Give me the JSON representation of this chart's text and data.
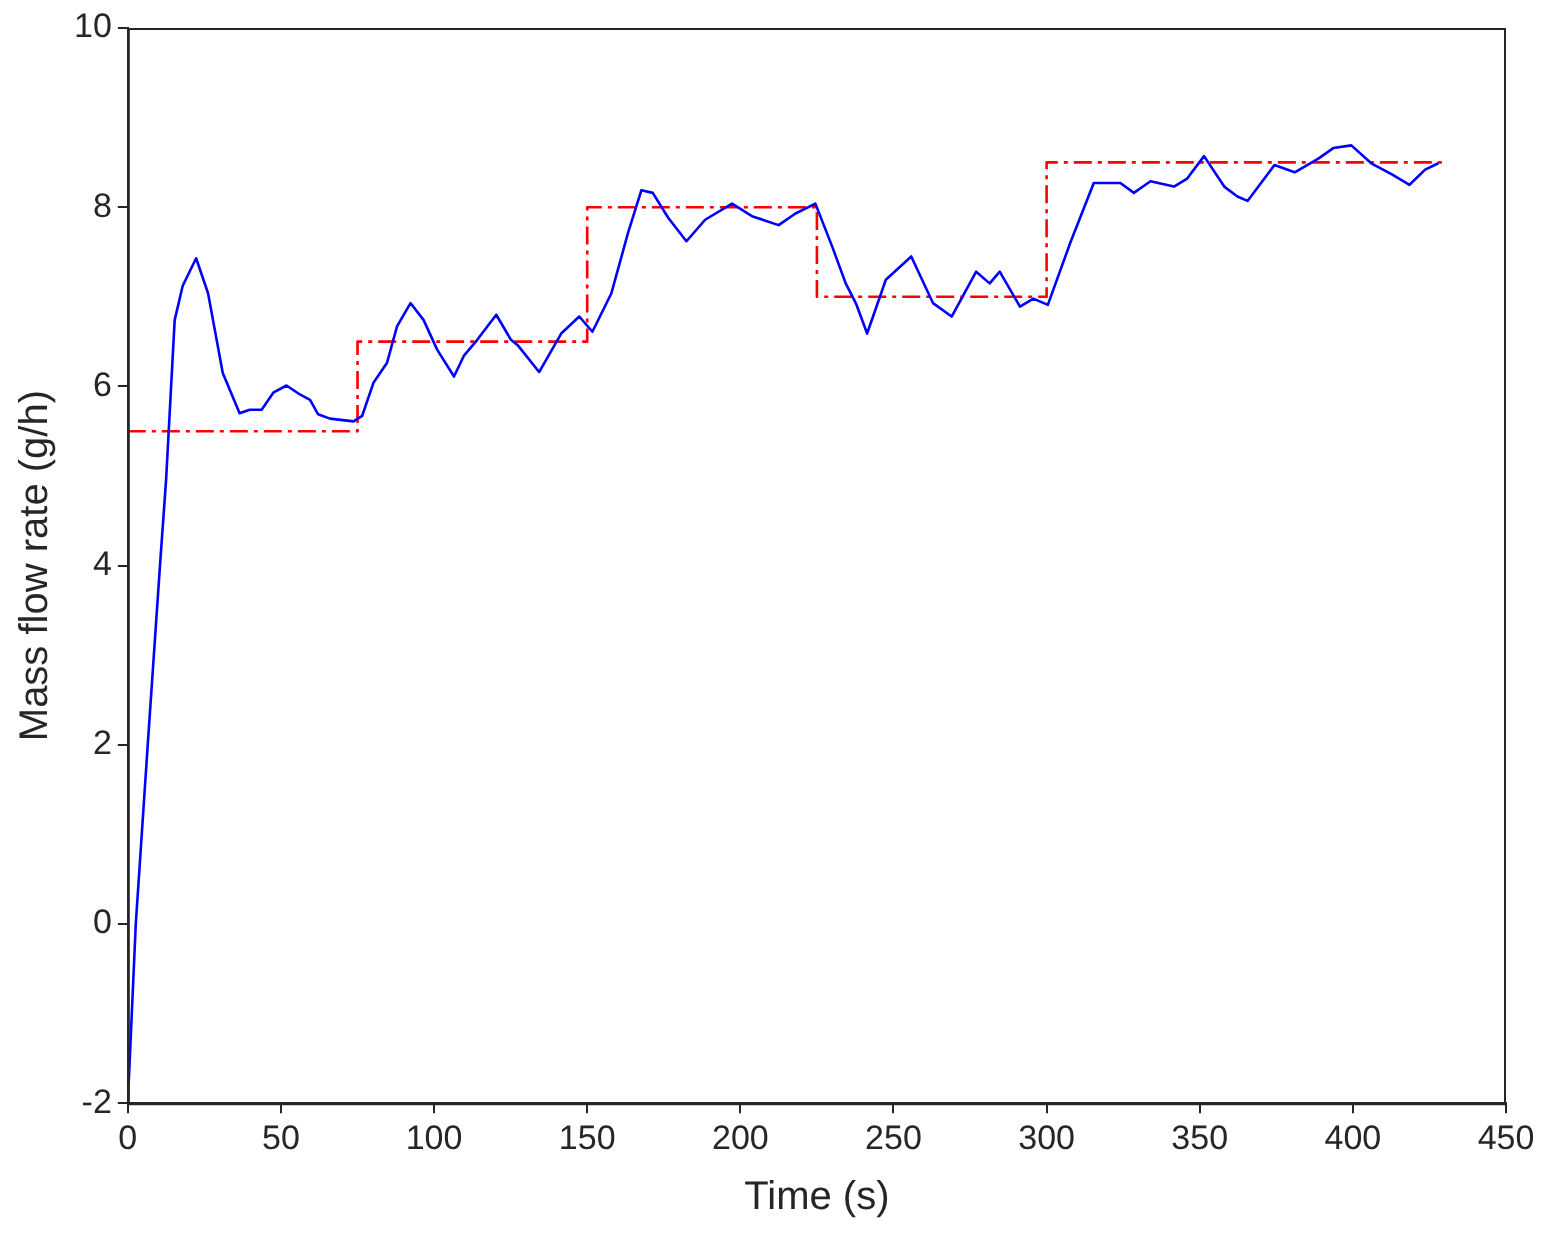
{
  "chart_data": {
    "type": "line",
    "xlabel": "Time (s)",
    "ylabel": "Mass flow rate (g/h)",
    "xlim": [
      0,
      450
    ],
    "xticks": [
      0,
      50,
      100,
      150,
      200,
      250,
      300,
      350,
      400,
      450
    ],
    "ylim": [
      -2,
      10
    ],
    "yticks": [
      -2,
      0,
      2,
      4,
      6,
      8,
      10
    ],
    "grid": false,
    "legend": false,
    "marker": "none",
    "series": [
      {
        "color": "#0000ff",
        "line_style": "solid",
        "x": [
          0,
          2.6,
          6.5,
          10.5,
          12.5,
          15.3,
          17.9,
          22.3,
          26.2,
          31,
          36.5,
          39.8,
          43.7,
          47.5,
          51.8,
          56.2,
          59.5,
          62.1,
          66,
          73.7,
          76.5,
          80.2,
          84.6,
          87.9,
          92.3,
          96.6,
          101,
          106.5,
          109.7,
          114.1,
          120.3,
          125.1,
          127.3,
          134.3,
          141.5,
          147.4,
          151.7,
          157.9,
          163.3,
          167.7,
          171.4,
          176.5,
          182.4,
          188.5,
          197.3,
          203.8,
          212.5,
          218,
          224.5,
          230,
          234.4,
          237.7,
          241.4,
          247.5,
          255.8,
          262.9,
          269,
          277,
          281.4,
          284.7,
          291.3,
          295.7,
          300.4,
          307.7,
          315.4,
          324.1,
          328.5,
          333.9,
          341.6,
          345.9,
          351.4,
          358,
          362.3,
          365.6,
          374.4,
          381,
          388.6,
          393.6,
          399.5,
          406,
          412.6,
          418.5,
          423.6,
          427.9
        ],
        "values": [
          -2,
          0,
          2,
          4,
          4.96,
          6.74,
          7.12,
          7.43,
          7.04,
          6.15,
          5.7,
          5.74,
          5.74,
          5.93,
          6.01,
          5.91,
          5.85,
          5.69,
          5.64,
          5.61,
          5.67,
          6.04,
          6.26,
          6.67,
          6.93,
          6.74,
          6.41,
          6.11,
          6.34,
          6.52,
          6.8,
          6.52,
          6.46,
          6.16,
          6.59,
          6.78,
          6.61,
          7.04,
          7.71,
          8.19,
          8.16,
          7.88,
          7.62,
          7.86,
          8.04,
          7.9,
          7.8,
          7.93,
          8.04,
          7.56,
          7.15,
          6.93,
          6.59,
          7.19,
          7.45,
          6.93,
          6.78,
          7.28,
          7.15,
          7.28,
          6.89,
          6.98,
          6.91,
          7.6,
          8.27,
          8.27,
          8.16,
          8.29,
          8.23,
          8.32,
          8.57,
          8.23,
          8.12,
          8.07,
          8.47,
          8.39,
          8.54,
          8.66,
          8.69,
          8.49,
          8.37,
          8.25,
          8.42,
          8.49
        ]
      },
      {
        "type": "step",
        "color": "#ff0000",
        "line_style": "dashed",
        "x": [
          0,
          75,
          150,
          225,
          300,
          430
        ],
        "values": [
          5.5,
          6.5,
          8,
          7,
          8.5,
          8.5
        ]
      }
    ]
  }
}
